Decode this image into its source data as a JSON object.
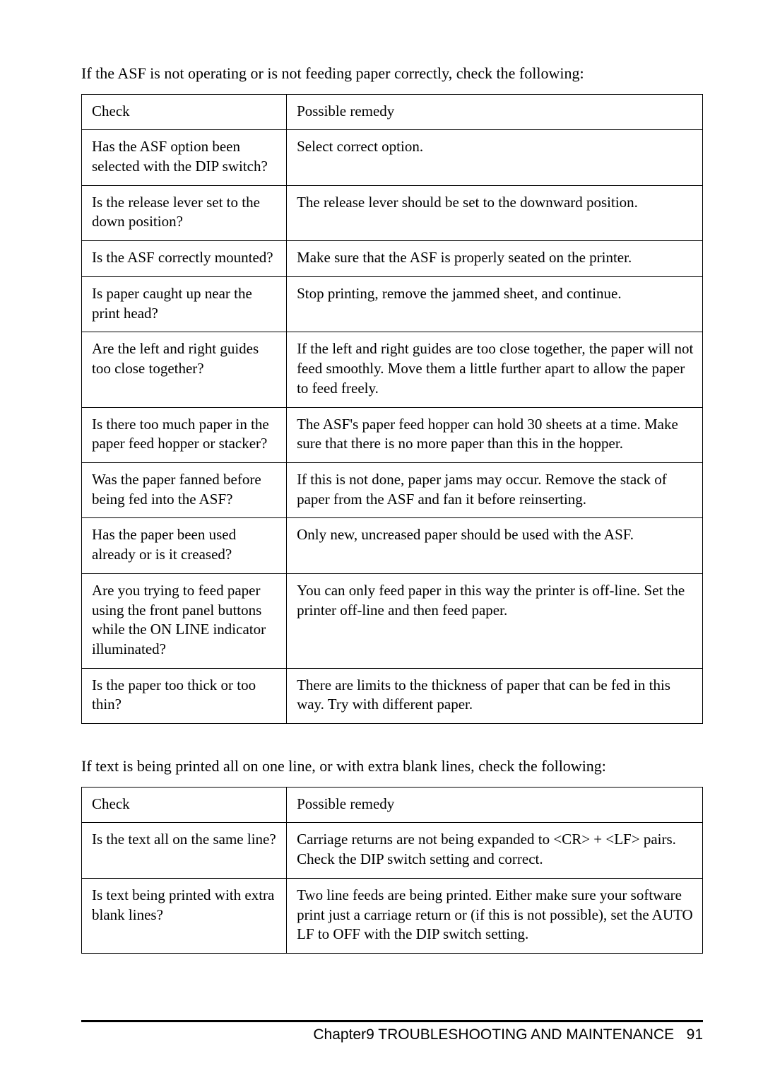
{
  "intro1": "If the ASF is not operating or is not feeding paper correctly, check the following:",
  "intro2": "If text is being printed all on one line, or with extra blank lines, check the following:",
  "headers": {
    "check": "Check",
    "remedy": "Possible remedy"
  },
  "table1": [
    {
      "check": "Has the ASF option been selected with the DIP switch?",
      "remedy": "Select correct option."
    },
    {
      "check": "Is the release lever set to the down position?",
      "remedy": "The release lever should be set to the downward position."
    },
    {
      "check": "Is the ASF correctly mounted?",
      "remedy": "Make sure that the ASF is properly seated on the printer."
    },
    {
      "check": "Is paper caught up near the print head?",
      "remedy": "Stop printing, remove the jammed sheet, and continue."
    },
    {
      "check": "Are the left and right guides too close together?",
      "remedy": "If the left and right guides are too close together, the paper will not feed smoothly. Move them a little further apart to allow the paper to feed freely."
    },
    {
      "check": "Is there too much paper in the paper feed hopper or stacker?",
      "remedy": "The ASF's paper feed hopper can hold 30 sheets at a time. Make sure that there is no more paper than this in the hopper."
    },
    {
      "check": "Was the paper fanned be­fore being fed into the ASF?",
      "remedy": "If this is not done, paper jams may occur. Remove the stack of paper from the ASF and fan it before reinserting."
    },
    {
      "check": "Has the paper been used already or is it creased?",
      "remedy": "Only new, uncreased paper should be used with the ASF."
    },
    {
      "check": "Are you trying to feed paper using the front panel buttons while the ON LINE indicator illuminated?",
      "remedy": "You can only feed paper in this way the printer is off-line. Set the printer off-line and then feed paper."
    },
    {
      "check": "Is the paper too thick or too thin?",
      "remedy": "There are limits to the thickness of paper that can be fed in this way. Try with different paper."
    }
  ],
  "table2": [
    {
      "check": "Is the text all on the same line?",
      "remedy": "Carriage returns are not being expanded to <CR> + <LF> pairs. Check the DIP switch setting and correct."
    },
    {
      "check": "Is text being printed with extra blank lines?",
      "remedy": "Two line feeds are being printed. Either make sure your software print just a carriage return or (if this is not possible), set the AUTO LF to OFF with the DIP switch setting."
    }
  ],
  "footer": {
    "chapter": "Chapter9  TROUBLESHOOTING AND MAINTENANCE",
    "page": "91"
  }
}
